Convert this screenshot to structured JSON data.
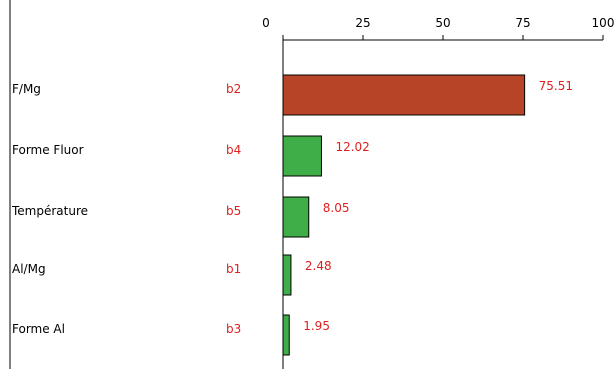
{
  "chart_data": {
    "type": "bar",
    "orientation": "horizontal",
    "title": "",
    "xlabel": "",
    "ylabel": "",
    "xlim": [
      0,
      100
    ],
    "ticks": [
      "0",
      "25",
      "50",
      "75",
      "100"
    ],
    "tick_values": [
      0,
      25,
      50,
      75,
      100
    ],
    "categories": [
      "F/Mg",
      "Forme Fluor",
      "Température",
      "Al/Mg",
      "Forme Al"
    ],
    "coefficients": [
      "b2",
      "b4",
      "b5",
      "b1",
      "b3"
    ],
    "values": [
      75.51,
      12.02,
      8.05,
      2.48,
      1.95
    ],
    "value_labels": [
      "75.51",
      "12.02",
      "8.05",
      "2.48",
      "1.95"
    ],
    "bar_colors": [
      "#b84428",
      "#3fad48",
      "#3fad48",
      "#3fad48",
      "#3fad48"
    ],
    "label_color": "#e02020",
    "grid": false,
    "legend": "none"
  }
}
